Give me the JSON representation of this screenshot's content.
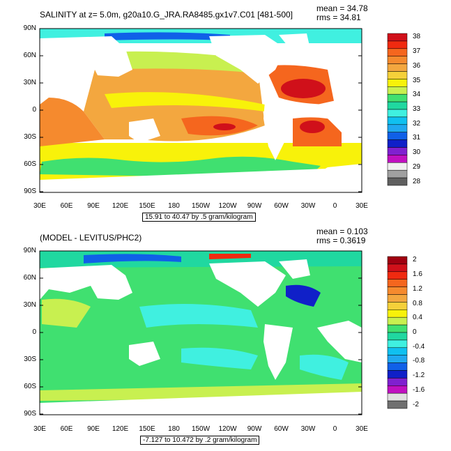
{
  "panel1": {
    "title": "SALINITY at z=   5.0m, g20a10.G_JRA.RA8485.gx1v7.C01 [481-500]",
    "mean": "mean = 34.78",
    "rms": "rms = 34.81",
    "info": "15.91 to 40.47 by .5 gram/kilogram"
  },
  "panel2": {
    "title": "(MODEL - LEVITUS/PHC2)",
    "mean": "mean = 0.103",
    "rms": "rms = 0.3619",
    "info": "-7.127 to 10.472 by .2 gram/kilogram"
  },
  "chart_data": [
    {
      "type": "heatmap",
      "title": "SALINITY at z=   5.0m, g20a10.G_JRA.RA8485.gx1v7.C01 [481-500]",
      "x_ticks": [
        "30E",
        "60E",
        "90E",
        "120E",
        "150E",
        "180",
        "150W",
        "120W",
        "90W",
        "60W",
        "30W",
        "0",
        "30E"
      ],
      "y_ticks": [
        "90N",
        "60N",
        "30N",
        "0",
        "30S",
        "60S",
        "90S"
      ],
      "colorbar": {
        "labels": [
          "38",
          "37",
          "36",
          "35",
          "34",
          "33",
          "32",
          "31",
          "30",
          "29",
          "28"
        ],
        "colors": [
          "#d0101a",
          "#f02a10",
          "#f5661e",
          "#f58a2e",
          "#f3a73f",
          "#f5d03a",
          "#f8f20a",
          "#c8f050",
          "#40e070",
          "#20d8a0",
          "#40f0e0",
          "#10c0f0",
          "#20a8f0",
          "#1060e8",
          "#1020c8",
          "#8020d0",
          "#c010c0",
          "#f0f0f0",
          "#a0a0a0",
          "#606060"
        ]
      },
      "stats": {
        "mean": 34.78,
        "rms": 34.81
      }
    },
    {
      "type": "heatmap",
      "title": "(MODEL - LEVITUS/PHC2)",
      "x_ticks": [
        "30E",
        "60E",
        "90E",
        "120E",
        "150E",
        "180",
        "150W",
        "120W",
        "90W",
        "60W",
        "30W",
        "0",
        "30E"
      ],
      "y_ticks": [
        "90N",
        "60N",
        "30N",
        "0",
        "30S",
        "60S",
        "90S"
      ],
      "colorbar": {
        "labels": [
          "2",
          "1.6",
          "1.2",
          "0.8",
          "0.4",
          "0",
          "-0.4",
          "-0.8",
          "-1.2",
          "-1.6",
          "-2"
        ],
        "colors": [
          "#a00010",
          "#d0101a",
          "#f02a10",
          "#f5661e",
          "#f58a2e",
          "#f3a73f",
          "#f5d03a",
          "#f8f20a",
          "#c8f050",
          "#40e070",
          "#20d8a0",
          "#40f0e0",
          "#10c0f0",
          "#20a8f0",
          "#1060e8",
          "#1020c8",
          "#8020d0",
          "#c010c0",
          "#e0e0e0",
          "#707070"
        ]
      },
      "stats": {
        "mean": 0.103,
        "rms": 0.3619
      }
    }
  ]
}
